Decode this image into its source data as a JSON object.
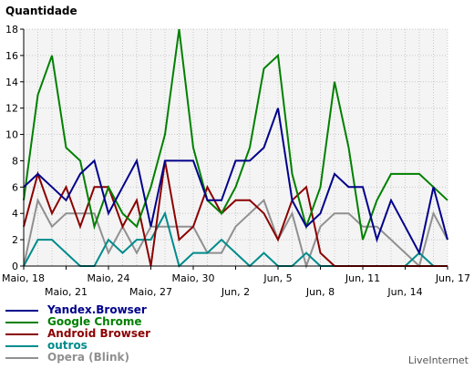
{
  "brand": "LiveInternet",
  "chart_data": {
    "type": "line",
    "ylabel": "Quantidade",
    "ylim": [
      0,
      18
    ],
    "yticks": [
      0,
      2,
      4,
      6,
      8,
      10,
      12,
      14,
      16,
      18
    ],
    "grid": true,
    "legend_position": "bottom-left",
    "x_tick_labels_row1": [
      {
        "i": 0,
        "label": "Maio, 18"
      },
      {
        "i": 6,
        "label": "Maio, 24"
      },
      {
        "i": 12,
        "label": "Maio, 30"
      },
      {
        "i": 18,
        "label": "Jun, 5"
      },
      {
        "i": 24,
        "label": "Jun, 11"
      },
      {
        "i": 30,
        "label": "Jun, 17"
      }
    ],
    "x_tick_labels_row2": [
      {
        "i": 3,
        "label": "Maio, 21"
      },
      {
        "i": 9,
        "label": "Maio, 27"
      },
      {
        "i": 15,
        "label": "Jun, 2"
      },
      {
        "i": 21,
        "label": "Jun, 8"
      },
      {
        "i": 27,
        "label": "Jun, 14"
      }
    ],
    "series": [
      {
        "name": "Yandex.Browser",
        "color": "#00008b",
        "values": [
          6,
          7,
          6,
          5,
          7,
          8,
          4,
          6,
          8,
          3,
          8,
          8,
          8,
          5,
          5,
          8,
          8,
          9,
          12,
          5,
          3,
          4,
          7,
          6,
          6,
          2,
          5,
          3,
          1,
          6,
          2
        ]
      },
      {
        "name": "Google Chrome",
        "color": "#008000",
        "values": [
          5,
          13,
          16,
          9,
          8,
          3,
          6,
          4,
          3,
          6,
          10,
          18,
          9,
          5,
          4,
          6,
          9,
          15,
          16,
          7,
          3,
          6,
          14,
          9,
          2,
          5,
          7,
          7,
          7,
          6,
          5
        ]
      },
      {
        "name": "Android Browser",
        "color": "#8b0000",
        "values": [
          3,
          7,
          4,
          6,
          3,
          6,
          6,
          3,
          5,
          0,
          8,
          2,
          3,
          6,
          4,
          5,
          5,
          4,
          2,
          5,
          6,
          1,
          0,
          0,
          0,
          0,
          0,
          0,
          0,
          0,
          0
        ]
      },
      {
        "name": "outros",
        "color": "#008b8b",
        "values": [
          0,
          2,
          2,
          1,
          0,
          0,
          2,
          1,
          2,
          2,
          4,
          0,
          1,
          1,
          2,
          1,
          0,
          1,
          0,
          0,
          1,
          0,
          0,
          0,
          0,
          0,
          0,
          0,
          1,
          0,
          0
        ]
      },
      {
        "name": "Opera (Blink)",
        "color": "#909090",
        "values": [
          0,
          5,
          3,
          4,
          4,
          4,
          1,
          3,
          1,
          3,
          3,
          3,
          3,
          1,
          1,
          3,
          4,
          5,
          2,
          4,
          0,
          3,
          4,
          4,
          3,
          3,
          2,
          1,
          0,
          4,
          2
        ]
      }
    ]
  }
}
